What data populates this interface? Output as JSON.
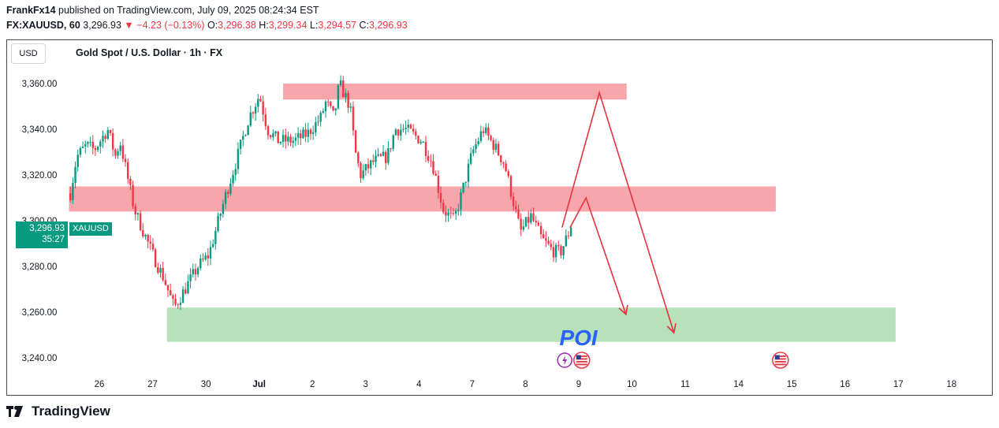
{
  "header": {
    "author": "FrankFx14",
    "published_line": " published on TradingView.com, July 09, 2025 08:24:34 EST",
    "symbol": "FX:XAUUSD, 60",
    "last": "3,296.93",
    "change_arrow": "▼",
    "change": "−4.23 (−0.13%)",
    "o_label": "O:",
    "o_value": "3,296.38",
    "h_label": "H:",
    "h_value": "3,299.34",
    "l_label": "L:",
    "l_value": "3,294.57",
    "c_label": "C:",
    "c_value": "3,296.93"
  },
  "chart_header": {
    "currency_button": "USD",
    "title": "Gold Spot / U.S. Dollar · 1h · FX"
  },
  "price_tag": {
    "price": "3,296.93",
    "countdown": "35:27",
    "symbol": "XAUUSD"
  },
  "annotation_text": "POI",
  "footer": {
    "brand": "TradingView"
  },
  "colors": {
    "up": "#089981",
    "down": "#f23645",
    "resistance_zone": "#f7a1a8",
    "demand_zone": "#b2dfb5",
    "poi_text": "#2962ff",
    "arrows": "#e53340"
  },
  "chart_data": {
    "type": "candlestick",
    "title": "Gold Spot / U.S. Dollar · 1h · FX",
    "ylim": [
      3236,
      3370
    ],
    "y_ticks": [
      {
        "value": 3360,
        "label": "3,360.00"
      },
      {
        "value": 3340,
        "label": "3,340.00"
      },
      {
        "value": 3320,
        "label": "3,320.00"
      },
      {
        "value": 3300,
        "label": "3,300.00"
      },
      {
        "value": 3280,
        "label": "3,280.00"
      },
      {
        "value": 3260,
        "label": "3,260.00"
      },
      {
        "value": 3240,
        "label": "3,240.00"
      }
    ],
    "x_ticks": [
      "26",
      "27",
      "30",
      "Jul",
      "2",
      "3",
      "4",
      "7",
      "8",
      "9",
      "10",
      "11",
      "14",
      "15",
      "16",
      "17",
      "18"
    ],
    "bold_x_ticks": [
      "Jul"
    ],
    "close_path": [
      {
        "t": 0.0,
        "p": 3312
      },
      {
        "t": 0.12,
        "p": 3328
      },
      {
        "t": 0.3,
        "p": 3333
      },
      {
        "t": 0.45,
        "p": 3331
      },
      {
        "t": 0.7,
        "p": 3340
      },
      {
        "t": 0.85,
        "p": 3328
      },
      {
        "t": 0.93,
        "p": 3335
      },
      {
        "t": 1.2,
        "p": 3305
      },
      {
        "t": 1.55,
        "p": 3285
      },
      {
        "t": 1.75,
        "p": 3275
      },
      {
        "t": 1.95,
        "p": 3262
      },
      {
        "t": 2.1,
        "p": 3268
      },
      {
        "t": 2.4,
        "p": 3280
      },
      {
        "t": 2.6,
        "p": 3285
      },
      {
        "t": 2.9,
        "p": 3310
      },
      {
        "t": 3.1,
        "p": 3325
      },
      {
        "t": 3.35,
        "p": 3345
      },
      {
        "t": 3.55,
        "p": 3355
      },
      {
        "t": 3.7,
        "p": 3340
      },
      {
        "t": 3.9,
        "p": 3335
      },
      {
        "t": 4.2,
        "p": 3335
      },
      {
        "t": 4.45,
        "p": 3338
      },
      {
        "t": 4.7,
        "p": 3345
      },
      {
        "t": 4.8,
        "p": 3352
      },
      {
        "t": 4.95,
        "p": 3345
      },
      {
        "t": 5.05,
        "p": 3360
      },
      {
        "t": 5.25,
        "p": 3350
      },
      {
        "t": 5.35,
        "p": 3330
      },
      {
        "t": 5.45,
        "p": 3320
      },
      {
        "t": 5.7,
        "p": 3326
      },
      {
        "t": 5.95,
        "p": 3328
      },
      {
        "t": 6.1,
        "p": 3340
      },
      {
        "t": 6.3,
        "p": 3340
      },
      {
        "t": 6.6,
        "p": 3335
      },
      {
        "t": 6.8,
        "p": 3325
      },
      {
        "t": 7.0,
        "p": 3305
      },
      {
        "t": 7.2,
        "p": 3300
      },
      {
        "t": 7.35,
        "p": 3312
      },
      {
        "t": 7.55,
        "p": 3330
      },
      {
        "t": 7.75,
        "p": 3340
      },
      {
        "t": 7.95,
        "p": 3333
      },
      {
        "t": 8.15,
        "p": 3325
      },
      {
        "t": 8.3,
        "p": 3310
      },
      {
        "t": 8.45,
        "p": 3295
      },
      {
        "t": 8.65,
        "p": 3302
      },
      {
        "t": 8.85,
        "p": 3292
      },
      {
        "t": 9.05,
        "p": 3287
      },
      {
        "t": 9.2,
        "p": 3286
      },
      {
        "t": 9.4,
        "p": 3297
      }
    ],
    "zones": [
      {
        "name": "upper-resistance-zone",
        "type": "supply",
        "x_start": 3.45,
        "x_end": 9.9,
        "y_low": 3353,
        "y_high": 3360
      },
      {
        "name": "middle-resistance-zone",
        "type": "supply",
        "x_start": -0.57,
        "x_end": 12.7,
        "y_low": 3304,
        "y_high": 3315
      },
      {
        "name": "poi-demand-zone",
        "type": "demand",
        "x_start": 1.27,
        "x_end": 14.95,
        "y_low": 3247,
        "y_high": 3262
      }
    ],
    "projections": [
      {
        "name": "projection-path-short",
        "points": [
          {
            "t": 9.4,
            "p": 3297
          },
          {
            "t": 9.7,
            "p": 3310
          },
          {
            "t": 10.45,
            "p": 3259
          }
        ]
      },
      {
        "name": "projection-path-long",
        "points": [
          {
            "t": 9.25,
            "p": 3297
          },
          {
            "t": 9.95,
            "p": 3356
          },
          {
            "t": 11.35,
            "p": 3251
          }
        ]
      }
    ],
    "poi_label_at": {
      "t": 9.2,
      "p": 3249
    },
    "event_icons": [
      {
        "t": 9.3,
        "kind": "split"
      },
      {
        "t": 9.62,
        "kind": "us-flag"
      },
      {
        "t": 13.35,
        "kind": "us-flag"
      }
    ]
  }
}
